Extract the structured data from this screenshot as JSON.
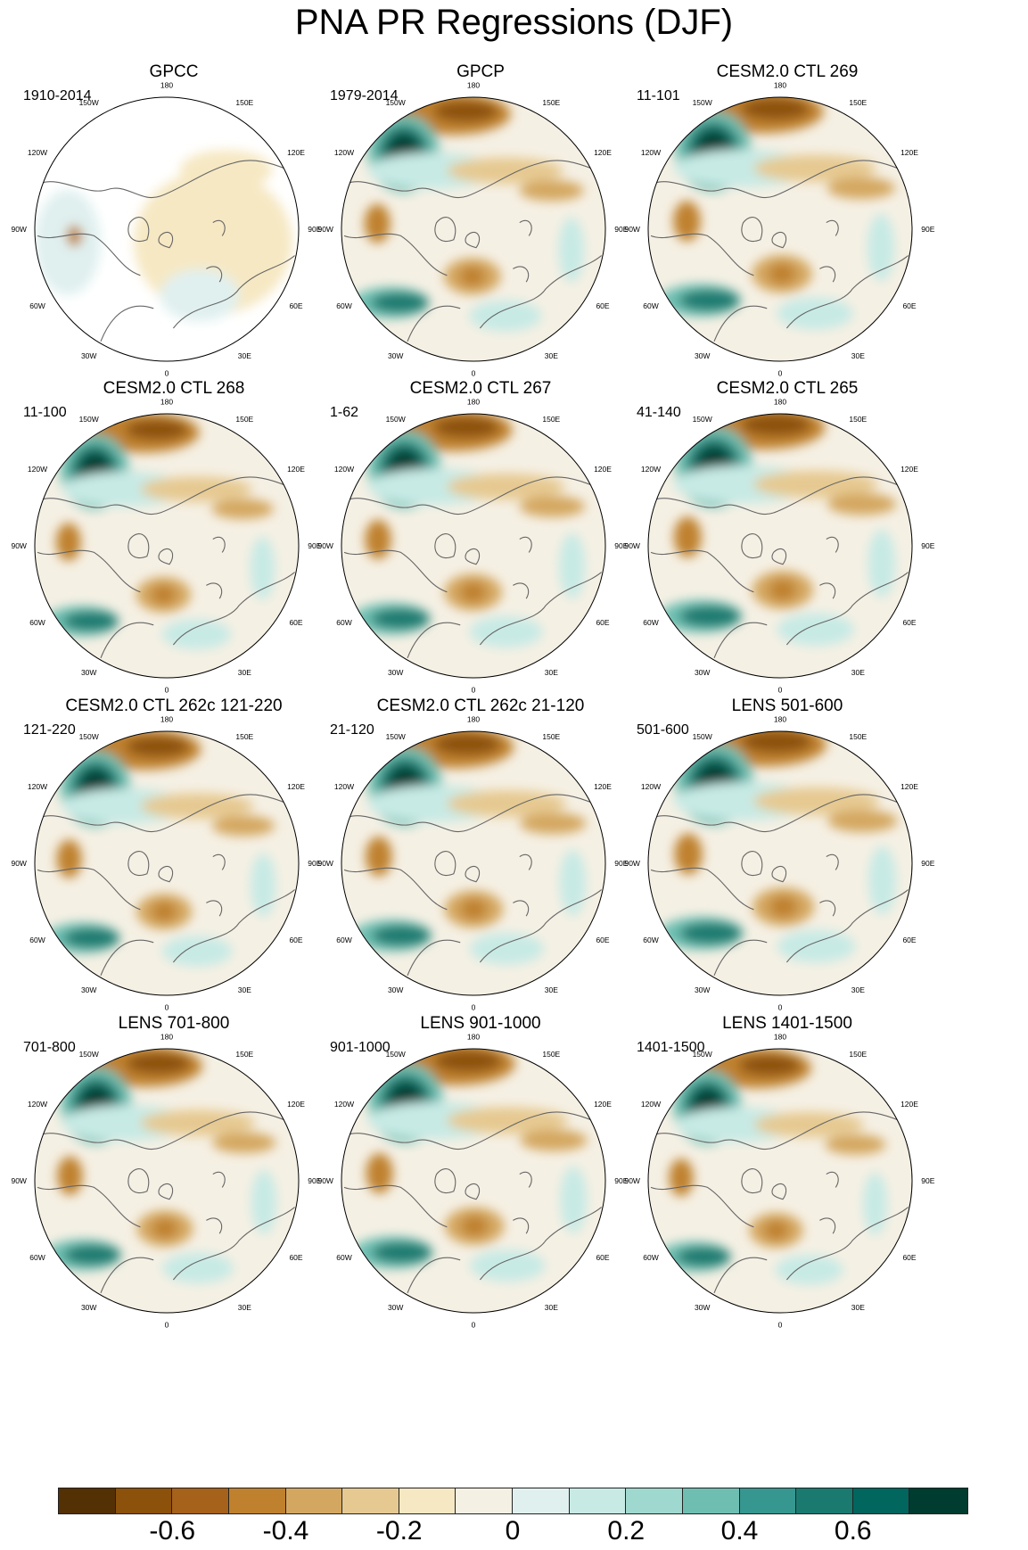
{
  "title": "PNA PR Regressions (DJF)",
  "lon_labels": [
    "180",
    "150E",
    "120E",
    "90E",
    "60E",
    "30E",
    "0",
    "30W",
    "60W",
    "90W",
    "120W",
    "150W"
  ],
  "panels": [
    {
      "title": "GPCC",
      "period": "1910-2014",
      "masked": true,
      "land_only": true
    },
    {
      "title": "GPCP",
      "period": "1979-2014",
      "masked": false
    },
    {
      "title": "CESM2.0 CTL 269",
      "period": "11-101",
      "masked": false
    },
    {
      "title": "CESM2.0 CTL 268",
      "period": "11-100",
      "masked": false
    },
    {
      "title": "CESM2.0 CTL 267",
      "period": "1-62",
      "masked": false
    },
    {
      "title": "CESM2.0 CTL 265",
      "period": "41-140",
      "masked": false
    },
    {
      "title": "CESM2.0 CTL 262c 121-220",
      "period": "121-220",
      "masked": false
    },
    {
      "title": "CESM2.0 CTL 262c 21-120",
      "period": "21-120",
      "masked": false
    },
    {
      "title": "LENS 501-600",
      "period": "501-600",
      "masked": false
    },
    {
      "title": "LENS 701-800",
      "period": "701-800",
      "masked": false
    },
    {
      "title": "LENS 901-1000",
      "period": "901-1000",
      "masked": false
    },
    {
      "title": "LENS 1401-1500",
      "period": "1401-1500",
      "masked": false
    }
  ],
  "colorbar": {
    "colors": [
      "#543005",
      "#8c510a",
      "#a6611a",
      "#bf812d",
      "#d4a761",
      "#e6c991",
      "#f6e8c3",
      "#f5f0e4",
      "#e0f0ef",
      "#c7eae5",
      "#9fd8ce",
      "#6ebfb2",
      "#35978f",
      "#1a7a70",
      "#01665e",
      "#003c30"
    ],
    "tick_labels": [
      "-0.6",
      "-0.4",
      "-0.2",
      "0",
      "0.2",
      "0.4",
      "0.6"
    ]
  }
}
